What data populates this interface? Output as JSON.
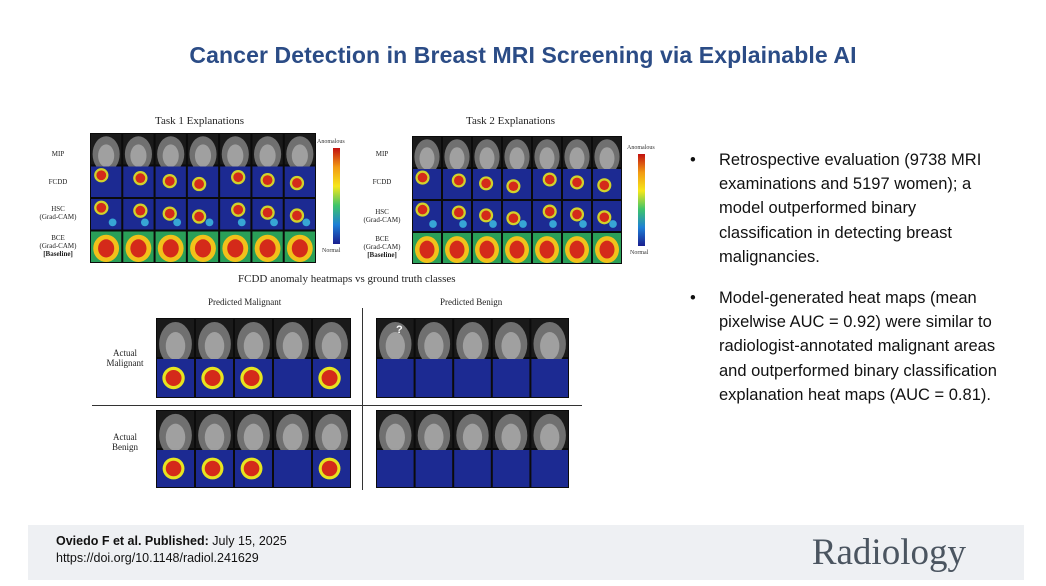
{
  "title": "Cancer Detection in Breast MRI Screening via Explainable AI",
  "figure": {
    "task1_label": "Task 1 Explanations",
    "task2_label": "Task 2 Explanations",
    "row_labels": {
      "mip": "MIP",
      "fcdd": "FCDD",
      "hsc": "HSC",
      "hsc_sub": "(Grad-CAM)",
      "bce": "BCE",
      "bce_sub": "(Grad-CAM)",
      "bce_note": "[Baseline]"
    },
    "scale_top": "Anomalous",
    "scale_bottom": "Normal",
    "caption": "FCDD anomaly heatmaps vs ground truth classes",
    "pred_malignant": "Predicted Malignant",
    "pred_benign": "Predicted Benign",
    "actual_malignant_1": "Actual",
    "actual_malignant_2": "Malignant",
    "actual_benign_1": "Actual",
    "actual_benign_2": "Benign",
    "question_mark": "?"
  },
  "bullets": [
    "Retrospective evaluation (9738 MRI examinations and 5197 women); a model outperformed binary classification in detecting breast malignancies.",
    "Model-generated heat maps (mean pixelwise AUC = 0.92) were similar to radiologist-annotated malignant areas and outperformed binary classification explanation heat maps (AUC = 0.81)."
  ],
  "bullet_symbol": "•",
  "footer": {
    "authors": "Oviedo F et al. Published:",
    "date": " July 15, 2025",
    "doi": "https://doi.org/10.1148/radiol.241629",
    "brand": "Radiology"
  },
  "colors": {
    "title": "#2b4c86",
    "heat_bg": "#1a2a8c",
    "hot": "#d42a1a",
    "footer_bg": "#eef0f3"
  }
}
